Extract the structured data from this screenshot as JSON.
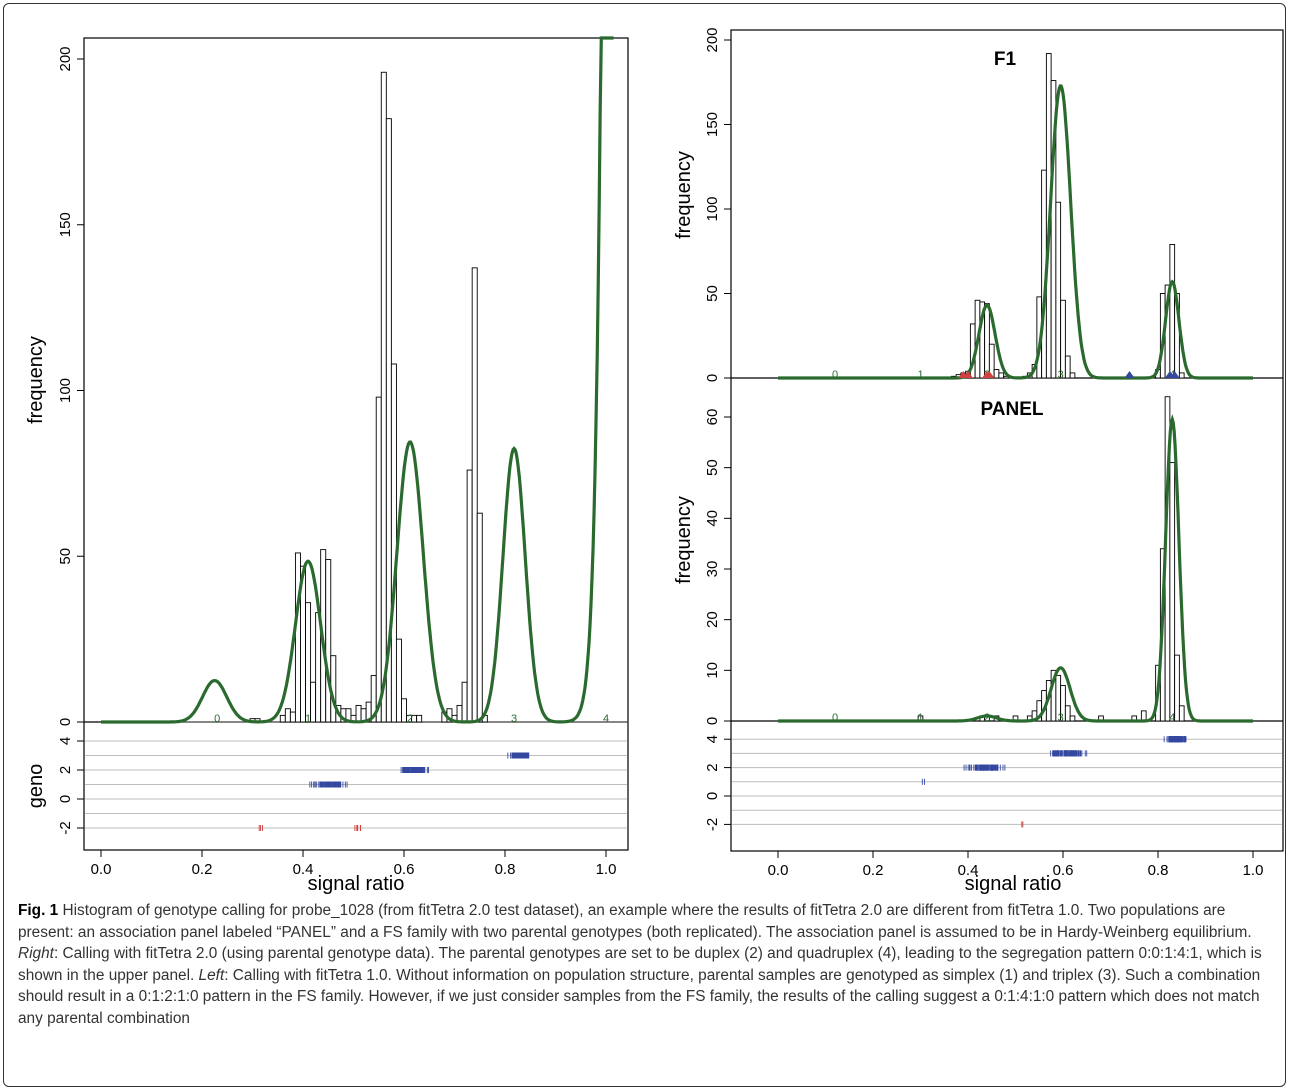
{
  "figure": {
    "left": {
      "ylabel": "frequency",
      "geno_label": "geno",
      "xlabel": "signal ratio",
      "yticks": [
        "0",
        "50",
        "100",
        "150",
        "200"
      ],
      "xticks": [
        "0.0",
        "0.2",
        "0.4",
        "0.6",
        "0.8",
        "1.0"
      ],
      "geno_ticks": [
        "4",
        "2",
        "0",
        "-2"
      ],
      "class_labels": [
        "0",
        "1",
        "2",
        "3",
        "4"
      ]
    },
    "right": {
      "ylabel_top": "frequency",
      "ylabel_bottom": "frequency",
      "xlabel": "signal ratio",
      "top_title": "F1",
      "bottom_title": "PANEL",
      "yticks_top": [
        "0",
        "50",
        "100",
        "150",
        "200"
      ],
      "yticks_bottom": [
        "0",
        "10",
        "20",
        "30",
        "40",
        "50",
        "60"
      ],
      "xticks": [
        "0.0",
        "0.2",
        "0.4",
        "0.6",
        "0.8",
        "1.0"
      ],
      "geno_ticks": [
        "4",
        "2",
        "0",
        "-2"
      ],
      "class_labels": [
        "0",
        "1",
        "2",
        "3",
        "4"
      ]
    }
  },
  "caption": {
    "label": "Fig. 1",
    "text_1": " Histogram of genotype calling for probe_1028 (from fitTetra 2.0 test dataset), an example where the results of fitTetra 2.0 are different from fitTetra 1.0. Two populations are present: an association panel labeled “PANEL” and a FS family with two parental genotypes (both replicated). The association panel is assumed to be in Hardy-Weinberg equilibrium. ",
    "right_word": "Right",
    "text_2": ": Calling with fitTetra 2.0 (using parental genotype data). The parental genotypes are set to be duplex (2) and quadruplex (4), leading to the segregation pattern 0:0:1:4:1, which is shown in the upper panel. ",
    "left_word": "Left",
    "text_3": ": Calling with fitTetra 1.0. Without information on population structure, parental samples are genotyped as simplex (1) and triplex (3). Such a combination should result in a 0:1:2:1:0 pattern in the FS family. However, if we just consider samples from the FS family, the results of the calling suggest a 0:1:4:1:0 pattern which does not match any parental combination"
  },
  "chart_data": [
    {
      "type": "histogram",
      "panel": "left",
      "xlabel": "signal ratio",
      "ylabel": "frequency",
      "xlim": [
        0,
        1.02
      ],
      "ylim": [
        0,
        205
      ],
      "bin_width": 0.01,
      "bars": [
        {
          "x": 0.3,
          "y": 1
        },
        {
          "x": 0.31,
          "y": 1
        },
        {
          "x": 0.36,
          "y": 2
        },
        {
          "x": 0.37,
          "y": 4
        },
        {
          "x": 0.38,
          "y": 3
        },
        {
          "x": 0.39,
          "y": 51
        },
        {
          "x": 0.4,
          "y": 47
        },
        {
          "x": 0.41,
          "y": 36
        },
        {
          "x": 0.42,
          "y": 12
        },
        {
          "x": 0.43,
          "y": 33
        },
        {
          "x": 0.44,
          "y": 52
        },
        {
          "x": 0.45,
          "y": 49
        },
        {
          "x": 0.46,
          "y": 20
        },
        {
          "x": 0.47,
          "y": 5
        },
        {
          "x": 0.48,
          "y": 4
        },
        {
          "x": 0.49,
          "y": 4
        },
        {
          "x": 0.5,
          "y": 2
        },
        {
          "x": 0.51,
          "y": 5
        },
        {
          "x": 0.52,
          "y": 4
        },
        {
          "x": 0.53,
          "y": 6
        },
        {
          "x": 0.54,
          "y": 14
        },
        {
          "x": 0.55,
          "y": 98
        },
        {
          "x": 0.56,
          "y": 196
        },
        {
          "x": 0.57,
          "y": 182
        },
        {
          "x": 0.58,
          "y": 108
        },
        {
          "x": 0.59,
          "y": 25
        },
        {
          "x": 0.6,
          "y": 7
        },
        {
          "x": 0.61,
          "y": 2
        },
        {
          "x": 0.62,
          "y": 2
        },
        {
          "x": 0.63,
          "y": 2
        },
        {
          "x": 0.68,
          "y": 3
        },
        {
          "x": 0.69,
          "y": 4
        },
        {
          "x": 0.7,
          "y": 2
        },
        {
          "x": 0.71,
          "y": 5
        },
        {
          "x": 0.72,
          "y": 12
        },
        {
          "x": 0.73,
          "y": 76
        },
        {
          "x": 0.74,
          "y": 137
        },
        {
          "x": 0.75,
          "y": 63
        },
        {
          "x": 0.76,
          "y": 2
        }
      ],
      "fitted_curve_peaks": [
        {
          "mean": 0.225,
          "height": 12.5
        },
        {
          "mean": 0.41,
          "height": 48.5
        },
        {
          "mean": 0.612,
          "height": 84.5
        },
        {
          "mean": 0.818,
          "height": 82.5
        },
        {
          "mean": 0.99,
          "height": 205
        }
      ],
      "geno_strip": {
        "ylim": [
          -2.8,
          4.8
        ],
        "yticks": [
          4,
          2,
          0,
          -2
        ]
      }
    },
    {
      "type": "histogram",
      "panel": "right-top",
      "title": "F1",
      "xlabel": "signal ratio",
      "ylabel": "frequency",
      "xlim": [
        -0.02,
        1.03
      ],
      "ylim": [
        0,
        205
      ],
      "bin_width": 0.01,
      "bars": [
        {
          "x": 0.37,
          "y": 1
        },
        {
          "x": 0.38,
          "y": 2
        },
        {
          "x": 0.39,
          "y": 3
        },
        {
          "x": 0.4,
          "y": 4
        },
        {
          "x": 0.41,
          "y": 32
        },
        {
          "x": 0.42,
          "y": 46
        },
        {
          "x": 0.43,
          "y": 45
        },
        {
          "x": 0.44,
          "y": 44
        },
        {
          "x": 0.45,
          "y": 20
        },
        {
          "x": 0.46,
          "y": 5
        },
        {
          "x": 0.47,
          "y": 3
        },
        {
          "x": 0.48,
          "y": 1
        },
        {
          "x": 0.52,
          "y": 1
        },
        {
          "x": 0.53,
          "y": 3
        },
        {
          "x": 0.54,
          "y": 8
        },
        {
          "x": 0.55,
          "y": 48
        },
        {
          "x": 0.56,
          "y": 123
        },
        {
          "x": 0.57,
          "y": 192
        },
        {
          "x": 0.58,
          "y": 176
        },
        {
          "x": 0.59,
          "y": 104
        },
        {
          "x": 0.6,
          "y": 46
        },
        {
          "x": 0.61,
          "y": 13
        },
        {
          "x": 0.62,
          "y": 3
        },
        {
          "x": 0.79,
          "y": 1
        },
        {
          "x": 0.8,
          "y": 5
        },
        {
          "x": 0.81,
          "y": 50
        },
        {
          "x": 0.82,
          "y": 55
        },
        {
          "x": 0.83,
          "y": 79
        },
        {
          "x": 0.84,
          "y": 50
        },
        {
          "x": 0.85,
          "y": 3
        }
      ],
      "fitted_curve_peaks": [
        {
          "mean": 0.44,
          "height": 43
        },
        {
          "mean": 0.595,
          "height": 173
        },
        {
          "mean": 0.83,
          "height": 57
        }
      ]
    },
    {
      "type": "histogram",
      "panel": "right-bottom",
      "title": "PANEL",
      "xlabel": "signal ratio",
      "ylabel": "frequency",
      "xlim": [
        -0.02,
        1.03
      ],
      "ylim": [
        0,
        66
      ],
      "bin_width": 0.01,
      "bars": [
        {
          "x": 0.3,
          "y": 1
        },
        {
          "x": 0.43,
          "y": 1
        },
        {
          "x": 0.44,
          "y": 1
        },
        {
          "x": 0.46,
          "y": 1
        },
        {
          "x": 0.5,
          "y": 1
        },
        {
          "x": 0.53,
          "y": 1
        },
        {
          "x": 0.54,
          "y": 2
        },
        {
          "x": 0.55,
          "y": 4
        },
        {
          "x": 0.56,
          "y": 6
        },
        {
          "x": 0.57,
          "y": 8
        },
        {
          "x": 0.58,
          "y": 10
        },
        {
          "x": 0.59,
          "y": 9
        },
        {
          "x": 0.6,
          "y": 7
        },
        {
          "x": 0.61,
          "y": 3
        },
        {
          "x": 0.62,
          "y": 1
        },
        {
          "x": 0.68,
          "y": 1
        },
        {
          "x": 0.75,
          "y": 1
        },
        {
          "x": 0.77,
          "y": 2
        },
        {
          "x": 0.8,
          "y": 11
        },
        {
          "x": 0.81,
          "y": 34
        },
        {
          "x": 0.82,
          "y": 64
        },
        {
          "x": 0.83,
          "y": 51
        },
        {
          "x": 0.84,
          "y": 13
        },
        {
          "x": 0.85,
          "y": 3
        }
      ],
      "fitted_curve_peaks": [
        {
          "mean": 0.44,
          "height": 1
        },
        {
          "mean": 0.595,
          "height": 10.5
        },
        {
          "mean": 0.83,
          "height": 59.5
        }
      ],
      "geno_strip": {
        "ylim": [
          -2.8,
          4.8
        ],
        "yticks": [
          4,
          2,
          0,
          -2
        ]
      }
    }
  ],
  "colors": {
    "curve": "#2b6a2e",
    "points": "#3548a0",
    "failed": "#d24040",
    "grid": "#bdbdbd"
  }
}
